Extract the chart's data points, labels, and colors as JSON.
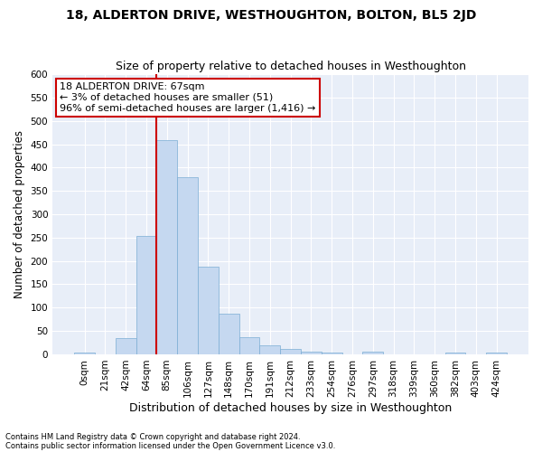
{
  "title": "18, ALDERTON DRIVE, WESTHOUGHTON, BOLTON, BL5 2JD",
  "subtitle": "Size of property relative to detached houses in Westhoughton",
  "xlabel": "Distribution of detached houses by size in Westhoughton",
  "ylabel": "Number of detached properties",
  "footnote1": "Contains HM Land Registry data © Crown copyright and database right 2024.",
  "footnote2": "Contains public sector information licensed under the Open Government Licence v3.0.",
  "bar_labels": [
    "0sqm",
    "21sqm",
    "42sqm",
    "64sqm",
    "85sqm",
    "106sqm",
    "127sqm",
    "148sqm",
    "170sqm",
    "191sqm",
    "212sqm",
    "233sqm",
    "254sqm",
    "276sqm",
    "297sqm",
    "318sqm",
    "339sqm",
    "360sqm",
    "382sqm",
    "403sqm",
    "424sqm"
  ],
  "bar_values": [
    3,
    0,
    35,
    253,
    458,
    380,
    188,
    88,
    37,
    20,
    12,
    5,
    3,
    0,
    5,
    0,
    0,
    0,
    4,
    0,
    3
  ],
  "bar_color": "#c5d8f0",
  "bar_edge_color": "#7badd4",
  "bg_color": "#e8eef8",
  "grid_color": "#ffffff",
  "annotation_line1": "18 ALDERTON DRIVE: 67sqm",
  "annotation_line2": "← 3% of detached houses are smaller (51)",
  "annotation_line3": "96% of semi-detached houses are larger (1,416) →",
  "vline_color": "#cc0000",
  "vline_x_index": 3.5,
  "ylim": [
    0,
    600
  ],
  "yticks": [
    0,
    50,
    100,
    150,
    200,
    250,
    300,
    350,
    400,
    450,
    500,
    550,
    600
  ],
  "title_fontsize": 10,
  "subtitle_fontsize": 9,
  "annotation_fontsize": 8,
  "xlabel_fontsize": 9,
  "ylabel_fontsize": 8.5,
  "tick_fontsize": 7.5,
  "ytick_fontsize": 7.5
}
